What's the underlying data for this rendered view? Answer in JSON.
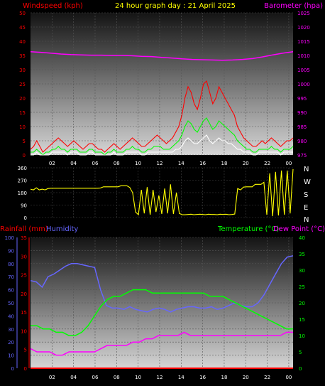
{
  "title": "24 hour graph day : 21 April 2025",
  "colors": {
    "wind_avg": "#ffffff",
    "wind_gust": "#ff0000",
    "wind_green": "#00ff00",
    "barometer": "#ff00ff",
    "direction": "#ffff00",
    "humidity": "#6666ff",
    "temperature": "#00ff00",
    "dewpoint": "#ff00ff",
    "rainfall": "#ff0000"
  },
  "chart_data": [
    {
      "type": "line",
      "left_label": "Windspeed (kph)",
      "right_label": "Barometer (hpa)",
      "left_ylim": [
        0,
        50
      ],
      "left_ticks": [
        "0",
        "5",
        "10",
        "15",
        "20",
        "25",
        "30",
        "35",
        "40",
        "45",
        "50"
      ],
      "right_ylim": [
        975,
        1025
      ],
      "right_ticks": [
        "975",
        "980",
        "985",
        "990",
        "995",
        "1000",
        "1005",
        "1010",
        "1015",
        "1020",
        "1025"
      ],
      "x_ticks": [
        "02",
        "04",
        "06",
        "08",
        "10",
        "12",
        "14",
        "16",
        "18",
        "20",
        "22",
        "00"
      ],
      "series": [
        {
          "key": "gust",
          "color": "#ff0000",
          "axis": "left",
          "values": [
            2,
            3,
            5,
            3,
            1,
            2,
            3,
            4,
            5,
            6,
            5,
            4,
            3,
            4,
            5,
            4,
            3,
            2,
            3,
            4,
            4,
            3,
            2,
            2,
            1,
            2,
            3,
            4,
            3,
            2,
            3,
            4,
            5,
            6,
            5,
            4,
            3,
            3,
            4,
            5,
            6,
            7,
            6,
            5,
            4,
            5,
            6,
            8,
            10,
            14,
            20,
            24,
            22,
            18,
            16,
            20,
            25,
            26,
            22,
            18,
            20,
            24,
            22,
            20,
            18,
            16,
            14,
            10,
            8,
            6,
            5,
            4,
            3,
            3,
            4,
            5,
            4,
            5,
            6,
            5,
            4,
            3,
            4,
            5,
            5,
            6
          ]
        },
        {
          "key": "green",
          "color": "#00ff00",
          "axis": "left",
          "values": [
            1,
            1,
            2,
            1,
            0,
            1,
            1,
            2,
            2,
            3,
            2,
            2,
            1,
            2,
            2,
            2,
            1,
            1,
            1,
            2,
            2,
            1,
            1,
            1,
            0,
            1,
            1,
            2,
            1,
            1,
            1,
            2,
            2,
            3,
            2,
            2,
            1,
            1,
            2,
            2,
            3,
            3,
            3,
            2,
            2,
            2,
            3,
            4,
            5,
            7,
            10,
            12,
            11,
            9,
            8,
            10,
            12,
            13,
            11,
            9,
            10,
            12,
            11,
            10,
            9,
            8,
            7,
            5,
            4,
            3,
            2,
            2,
            1,
            1,
            2,
            2,
            2,
            2,
            3,
            2,
            2,
            1,
            2,
            2,
            2,
            3
          ]
        },
        {
          "key": "average",
          "color": "#ffffff",
          "axis": "left",
          "values": [
            0,
            0,
            1,
            0,
            0,
            0,
            0,
            1,
            1,
            1,
            1,
            1,
            0,
            1,
            1,
            1,
            0,
            0,
            0,
            1,
            1,
            0,
            0,
            0,
            0,
            0,
            0,
            1,
            0,
            0,
            0,
            1,
            1,
            1,
            1,
            1,
            0,
            0,
            1,
            1,
            1,
            1,
            1,
            1,
            1,
            1,
            1,
            2,
            2,
            3,
            5,
            6,
            5,
            4,
            4,
            5,
            6,
            7,
            5,
            4,
            5,
            6,
            5,
            5,
            4,
            4,
            3,
            2,
            2,
            1,
            1,
            1,
            0,
            0,
            1,
            1,
            1,
            1,
            1,
            1,
            1,
            0,
            1,
            1,
            1,
            1
          ]
        },
        {
          "key": "barometer",
          "color": "#ff00ff",
          "axis": "right",
          "values": [
            1011.3,
            1011.1,
            1010.8,
            1010.5,
            1010.3,
            1010.2,
            1010.1,
            1010.1,
            1010.0,
            1010.0,
            1009.9,
            1009.7,
            1009.6,
            1009.3,
            1009.1,
            1008.8,
            1008.6,
            1008.5,
            1008.4,
            1008.3,
            1008.4,
            1008.6,
            1008.9,
            1009.5,
            1010.2,
            1010.8,
            1011.3
          ]
        }
      ]
    },
    {
      "type": "line",
      "left_ylim": [
        0,
        360
      ],
      "left_ticks": [
        "0",
        "90",
        "180",
        "270",
        "360"
      ],
      "right_ticks": [
        "N",
        "W",
        "S",
        "E",
        "N"
      ],
      "series": [
        {
          "key": "direction",
          "color": "#ffff00",
          "values": [
            205,
            200,
            215,
            200,
            205,
            200,
            210,
            212,
            212,
            212,
            212,
            212,
            212,
            212,
            212,
            212,
            212,
            212,
            212,
            212,
            212,
            212,
            212,
            212,
            214,
            222,
            222,
            222,
            222,
            222,
            222,
            230,
            230,
            230,
            218,
            180,
            40,
            20,
            200,
            30,
            220,
            20,
            200,
            40,
            160,
            25,
            210,
            30,
            240,
            25,
            180,
            30,
            20,
            20,
            22,
            24,
            20,
            22,
            24,
            22,
            20,
            24,
            22,
            22,
            20,
            24,
            22,
            24,
            20,
            22,
            25,
            210,
            200,
            220,
            222,
            222,
            222,
            240,
            240,
            240,
            255,
            20,
            320,
            10,
            330,
            15,
            340,
            20,
            340,
            30,
            350
          ]
        }
      ]
    },
    {
      "type": "line",
      "labels": {
        "rainfall": "Rainfall (mm)",
        "humidity": "Humidity",
        "temperature": "Temperature (°C)",
        "dewpoint": "Dew Point (°C)"
      },
      "humidity_ylim": [
        0,
        100
      ],
      "humidity_ticks": [
        "0",
        "10",
        "20",
        "30",
        "40",
        "50",
        "60",
        "70",
        "80",
        "90",
        "100"
      ],
      "rain_ylim": [
        0,
        35
      ],
      "rain_ticks": [
        "0",
        "5",
        "10",
        "15",
        "20",
        "25",
        "30",
        "35"
      ],
      "temp_ylim": [
        0,
        40
      ],
      "temp_ticks": [
        "0",
        "5",
        "10",
        "15",
        "20",
        "25",
        "30",
        "35",
        "40"
      ],
      "series": [
        {
          "key": "humidity",
          "color": "#6666ff",
          "axis": "humidity",
          "values": [
            67,
            66,
            62,
            70,
            72,
            75,
            78,
            80,
            80,
            79,
            78,
            77,
            60,
            48,
            46,
            46,
            45,
            47,
            45,
            44,
            43,
            45,
            46,
            45,
            43,
            45,
            46,
            47,
            47,
            46,
            46,
            47,
            45,
            46,
            48,
            50,
            48,
            47,
            47,
            50,
            56,
            64,
            72,
            80,
            85,
            86
          ]
        },
        {
          "key": "temperature",
          "color": "#00ff00",
          "axis": "temp",
          "values": [
            13,
            13,
            12,
            12,
            11,
            11,
            10,
            10,
            11,
            13,
            16,
            19,
            21,
            22,
            22,
            23,
            24,
            24,
            24,
            23,
            23,
            23,
            23,
            23,
            23,
            23,
            23,
            23,
            22,
            22,
            22,
            21,
            20,
            19,
            18,
            17,
            16,
            15,
            14,
            13,
            12,
            12
          ]
        },
        {
          "key": "dewpoint",
          "color": "#ff00ff",
          "axis": "temp",
          "values": [
            6,
            5,
            5,
            5,
            4,
            4,
            5,
            5,
            5,
            5,
            5,
            6,
            7,
            7,
            7,
            7,
            8,
            8,
            9,
            9,
            10,
            10,
            10,
            10,
            11,
            10,
            10,
            10,
            10,
            10,
            10,
            10,
            10,
            10,
            10,
            10,
            10,
            10,
            10,
            10,
            11,
            11
          ]
        },
        {
          "key": "rainfall",
          "color": "#ff0000",
          "axis": "rain",
          "values": [
            0,
            0,
            0,
            0,
            0,
            0,
            0,
            0,
            0,
            0,
            0,
            0,
            0
          ]
        }
      ]
    }
  ]
}
